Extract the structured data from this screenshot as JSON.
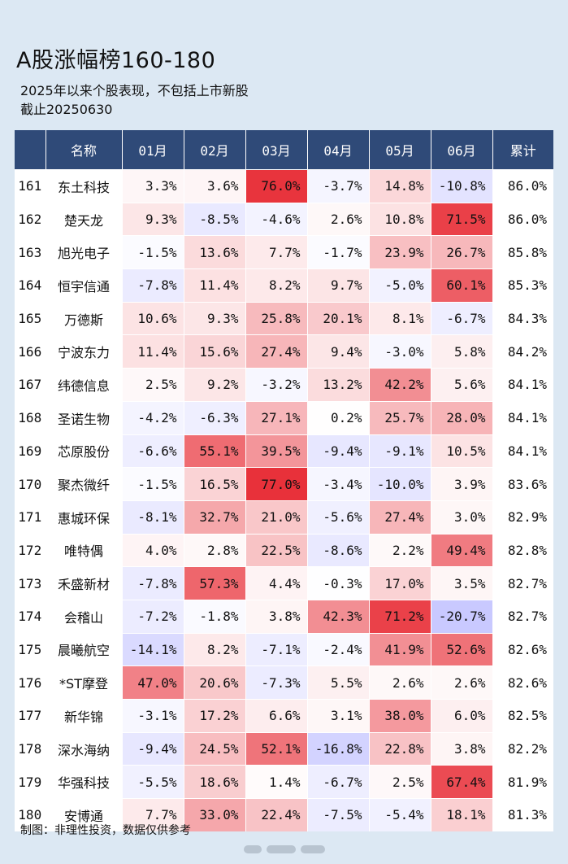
{
  "chart_data": {
    "type": "heatmap",
    "title": "A股涨幅榜160-180",
    "subtitle": "2025年以来个股表现，不包括上市新股",
    "date_line": "截止20250630",
    "columns": [
      "名称",
      "01月",
      "02月",
      "03月",
      "04月",
      "05月",
      "06月",
      "累计"
    ],
    "rows": [
      {
        "rank": 161,
        "name": "东土科技",
        "months": [
          3.3,
          3.6,
          76.0,
          -3.7,
          14.8,
          -10.8
        ],
        "total": 86.0
      },
      {
        "rank": 162,
        "name": "楚天龙",
        "months": [
          9.3,
          -8.5,
          -4.6,
          2.6,
          10.8,
          71.5
        ],
        "total": 86.0
      },
      {
        "rank": 163,
        "name": "旭光电子",
        "months": [
          -1.5,
          13.6,
          7.7,
          -1.7,
          23.9,
          26.7
        ],
        "total": 85.8
      },
      {
        "rank": 164,
        "name": "恒宇信通",
        "months": [
          -7.8,
          11.4,
          8.2,
          9.7,
          -5.0,
          60.1
        ],
        "total": 85.3
      },
      {
        "rank": 165,
        "name": "万德斯",
        "months": [
          10.6,
          9.3,
          25.8,
          20.1,
          8.1,
          -6.7
        ],
        "total": 84.3
      },
      {
        "rank": 166,
        "name": "宁波东力",
        "months": [
          11.4,
          15.6,
          27.4,
          9.4,
          -3.0,
          5.8
        ],
        "total": 84.2
      },
      {
        "rank": 167,
        "name": "纬德信息",
        "months": [
          2.5,
          9.2,
          -3.2,
          13.2,
          42.2,
          5.6
        ],
        "total": 84.1
      },
      {
        "rank": 168,
        "name": "圣诺生物",
        "months": [
          -4.2,
          -6.3,
          27.1,
          0.2,
          25.7,
          28.0
        ],
        "total": 84.1
      },
      {
        "rank": 169,
        "name": "芯原股份",
        "months": [
          -6.6,
          55.1,
          39.5,
          -9.4,
          -9.1,
          10.5
        ],
        "total": 84.1
      },
      {
        "rank": 170,
        "name": "聚杰微纤",
        "months": [
          -1.5,
          16.5,
          77.0,
          -3.4,
          -10.0,
          3.9
        ],
        "total": 83.6
      },
      {
        "rank": 171,
        "name": "惠城环保",
        "months": [
          -8.1,
          32.7,
          21.0,
          -5.6,
          27.4,
          3.0
        ],
        "total": 82.9
      },
      {
        "rank": 172,
        "name": "唯特偶",
        "months": [
          4.0,
          2.8,
          22.5,
          -8.6,
          2.2,
          49.4
        ],
        "total": 82.8
      },
      {
        "rank": 173,
        "name": "禾盛新材",
        "months": [
          -7.8,
          57.3,
          4.4,
          -0.3,
          17.0,
          3.5
        ],
        "total": 82.7
      },
      {
        "rank": 174,
        "name": "会稽山",
        "months": [
          -7.2,
          -1.8,
          3.8,
          42.3,
          71.2,
          -20.7
        ],
        "total": 82.7
      },
      {
        "rank": 175,
        "name": "晨曦航空",
        "months": [
          -14.1,
          8.2,
          -7.1,
          -2.4,
          41.9,
          52.6
        ],
        "total": 82.6
      },
      {
        "rank": 176,
        "name": "*ST摩登",
        "months": [
          47.0,
          20.6,
          -7.3,
          5.5,
          2.6,
          2.6
        ],
        "total": 82.6
      },
      {
        "rank": 177,
        "name": "新华锦",
        "months": [
          -3.1,
          17.2,
          6.6,
          3.1,
          38.0,
          6.0
        ],
        "total": 82.5
      },
      {
        "rank": 178,
        "name": "深水海纳",
        "months": [
          -9.4,
          24.5,
          52.1,
          -16.8,
          22.8,
          3.8
        ],
        "total": 82.2
      },
      {
        "rank": 179,
        "name": "华强科技",
        "months": [
          -5.5,
          18.6,
          1.4,
          -6.7,
          2.5,
          67.4
        ],
        "total": 81.9
      },
      {
        "rank": 180,
        "name": "安博通",
        "months": [
          7.7,
          33.0,
          22.4,
          -7.5,
          -5.4,
          18.1
        ],
        "total": 81.3
      }
    ],
    "unit": "%",
    "colors": {
      "header_bg": "#2f4a78",
      "positive": "#e8313a",
      "negative": "#4a4ad8",
      "neutral": "#ffffff"
    }
  },
  "footer": {
    "text": "制图：非理性投资，数据仅供参考"
  }
}
